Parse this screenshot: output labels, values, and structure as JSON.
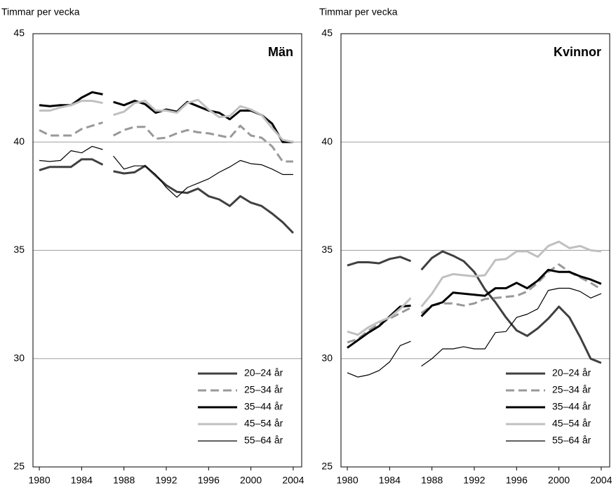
{
  "chart_data": [
    {
      "type": "line",
      "title": "Män",
      "y_label": "Timmar per vecka",
      "x": [
        1980,
        1981,
        1982,
        1983,
        1984,
        1985,
        1986,
        1986.5,
        1987,
        1988,
        1989,
        1990,
        1991,
        1992,
        1993,
        1994,
        1995,
        1996,
        1997,
        1998,
        1999,
        2000,
        2001,
        2002,
        2003,
        2004
      ],
      "xlim": [
        1979.4,
        2004.8
      ],
      "xticks": [
        1980,
        1984,
        1988,
        1992,
        1996,
        2000,
        2004
      ],
      "ylim": [
        25,
        45
      ],
      "yticks": [
        25,
        30,
        35,
        40,
        45
      ],
      "grid": true,
      "legend": "lower right",
      "series": [
        {
          "name": "20–24 år",
          "color": "#404040",
          "width": 3,
          "dashed": false,
          "values": [
            38.7,
            38.85,
            38.85,
            38.85,
            39.2,
            39.2,
            38.95,
            null,
            38.65,
            38.55,
            38.6,
            38.9,
            38.45,
            38.0,
            37.7,
            37.65,
            37.85,
            37.5,
            37.35,
            37.05,
            37.5,
            37.2,
            37.05,
            36.7,
            36.3,
            35.8
          ]
        },
        {
          "name": "25–34 år",
          "color": "#999999",
          "width": 3,
          "dashed": true,
          "values": [
            40.55,
            40.3,
            40.3,
            40.3,
            40.6,
            40.75,
            40.9,
            null,
            40.3,
            40.55,
            40.7,
            40.7,
            40.15,
            40.2,
            40.4,
            40.55,
            40.45,
            40.4,
            40.3,
            40.2,
            40.75,
            40.3,
            40.2,
            39.8,
            39.1,
            39.1
          ]
        },
        {
          "name": "35–44 år",
          "color": "#000000",
          "width": 3,
          "dashed": false,
          "values": [
            41.7,
            41.65,
            41.7,
            41.7,
            42.05,
            42.3,
            42.2,
            null,
            41.85,
            41.7,
            41.9,
            41.75,
            41.35,
            41.5,
            41.4,
            41.85,
            41.65,
            41.45,
            41.35,
            41.05,
            41.45,
            41.45,
            41.25,
            40.85,
            40.0,
            40.0
          ]
        },
        {
          "name": "45–54 år",
          "color": "#c0c0c0",
          "width": 3,
          "dashed": false,
          "values": [
            41.45,
            41.45,
            41.6,
            41.7,
            41.9,
            41.9,
            41.8,
            null,
            41.25,
            41.4,
            41.8,
            41.9,
            41.45,
            41.45,
            41.35,
            41.8,
            41.95,
            41.5,
            41.15,
            41.2,
            41.65,
            41.5,
            41.25,
            40.65,
            40.1,
            40.0
          ]
        },
        {
          "name": "55–64 år",
          "color": "#000000",
          "width": 1.2,
          "dashed": false,
          "values": [
            39.15,
            39.1,
            39.15,
            39.6,
            39.5,
            39.8,
            39.65,
            null,
            39.35,
            38.75,
            38.9,
            38.9,
            38.5,
            37.9,
            37.45,
            37.9,
            38.1,
            38.3,
            38.6,
            38.85,
            39.15,
            39.0,
            38.95,
            38.75,
            38.5,
            38.5
          ]
        }
      ]
    },
    {
      "type": "line",
      "title": "Kvinnor",
      "y_label": "Timmar per vecka",
      "x": [
        1980,
        1981,
        1982,
        1983,
        1984,
        1985,
        1986,
        1986.5,
        1987,
        1988,
        1989,
        1990,
        1991,
        1992,
        1993,
        1994,
        1995,
        1996,
        1997,
        1998,
        1999,
        2000,
        2001,
        2002,
        2003,
        2004
      ],
      "xlim": [
        1979.4,
        2004.8
      ],
      "xticks": [
        1980,
        1984,
        1988,
        1992,
        1996,
        2000,
        2004
      ],
      "ylim": [
        25,
        45
      ],
      "yticks": [
        25,
        30,
        35,
        40,
        45
      ],
      "grid": true,
      "legend": "lower right",
      "series": [
        {
          "name": "20–24 år",
          "color": "#404040",
          "width": 3,
          "dashed": false,
          "values": [
            34.3,
            34.45,
            34.45,
            34.4,
            34.6,
            34.7,
            34.5,
            null,
            34.1,
            34.65,
            34.95,
            34.75,
            34.5,
            34.0,
            33.2,
            32.6,
            31.9,
            31.3,
            31.05,
            31.4,
            31.85,
            32.4,
            31.9,
            31.0,
            30.0,
            29.8
          ]
        },
        {
          "name": "25–34 år",
          "color": "#999999",
          "width": 3,
          "dashed": true,
          "values": [
            30.75,
            30.9,
            31.3,
            31.6,
            31.85,
            32.1,
            32.35,
            null,
            32.1,
            32.45,
            32.55,
            32.55,
            32.45,
            32.55,
            32.75,
            32.8,
            32.85,
            32.9,
            33.1,
            33.5,
            34.0,
            34.35,
            34.0,
            33.75,
            33.5,
            33.2
          ]
        },
        {
          "name": "35–44 år",
          "color": "#000000",
          "width": 3,
          "dashed": false,
          "values": [
            30.5,
            30.85,
            31.2,
            31.5,
            31.95,
            32.4,
            32.45,
            null,
            31.95,
            32.45,
            32.6,
            33.05,
            33.0,
            32.95,
            32.9,
            33.25,
            33.25,
            33.5,
            33.25,
            33.6,
            34.1,
            34.0,
            34.0,
            33.8,
            33.65,
            33.45
          ]
        },
        {
          "name": "45–54 år",
          "color": "#c0c0c0",
          "width": 3,
          "dashed": false,
          "values": [
            31.25,
            31.1,
            31.45,
            31.7,
            31.9,
            32.3,
            32.8,
            null,
            32.4,
            33.0,
            33.75,
            33.9,
            33.85,
            33.8,
            33.85,
            34.55,
            34.6,
            34.95,
            34.95,
            34.7,
            35.2,
            35.4,
            35.1,
            35.2,
            35.0,
            34.95
          ]
        },
        {
          "name": "55–64 år",
          "color": "#000000",
          "width": 1.2,
          "dashed": false,
          "values": [
            29.35,
            29.15,
            29.25,
            29.45,
            29.85,
            30.6,
            30.8,
            null,
            29.65,
            30.0,
            30.45,
            30.45,
            30.55,
            30.45,
            30.45,
            31.2,
            31.25,
            31.9,
            32.05,
            32.3,
            33.15,
            33.25,
            33.25,
            33.1,
            32.8,
            33.0
          ]
        }
      ]
    }
  ]
}
